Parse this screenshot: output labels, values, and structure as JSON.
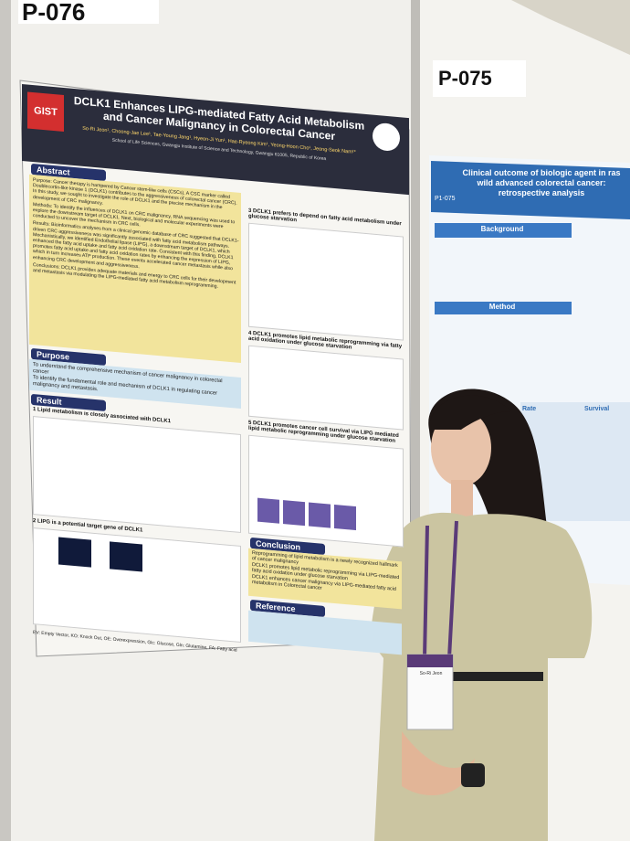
{
  "left_poster": {
    "number": "P-076",
    "logo": "GIST",
    "title": "DCLK1 Enhances LIPG-mediated Fatty Acid Metabolism and Cancer Malignancy in Colorectal Cancer",
    "authors": "So-Ri Jeon¹, Choong-Jae Lee¹, Tae-Young Jang¹, Hyeon-Ji Yun¹, Hae-Ryeong Kim¹, Yeong-Hoon Cho¹, Jeong-Seok Nam¹*",
    "affiliation": "School of Life Sciences, Gwangju Institute of Science and Technology, Gwangju 61005, Republic of Korea",
    "abstract": {
      "heading": "Abstract",
      "paragraphs": [
        "Purpose: Cancer therapy is hampered by Cancer stem-like cells (CSCs). A CSC marker called Doublecortin-like kinase 1 (DCLK1) contributes to the aggressiveness of colorectal cancer (CRC). In this study, we sought to investigate the role of DCLK1 and the precise mechanism in the development of CRC malignancy.",
        "Methods: To identify the influences of DCLK1 on CRC malignancy, RNA sequencing was used to explore the downstream target of DCLK1. Next, biological and molecular experiments were conducted to uncover the mechanism in CRC cells.",
        "Results: Bioinformatics analyses from a clinical genomic database of CRC suggested that DCLK1-driven CRC aggressiveness was significantly associated with fatty acid metabolism pathways. Mechanistically, we identified Endothelial lipase (LIPG), a downstream target of DCLK1, which enhanced the fatty acid uptake and fatty acid oxidation rate. Consistent with this finding, DCLK1 promotes fatty acid uptake and fatty acid oxidation rates by enhancing the expression of LIPG, which in turn increases ATP production. These events accelerated cancer metastasis while also enhancing CRC development and aggressiveness.",
        "Conclusions: DCLK1 provides adequate materials and energy to CRC cells for their development and metastasis via modulating the LIPG-mediated fatty acid metabolism reprogramming."
      ]
    },
    "purpose": {
      "heading": "Purpose",
      "items": [
        "To understand the comprehensive mechanism of cancer malignancy in colorectal cancer",
        "To identify the fundamental role and mechanism of DCLK1 in regulating cancer malignancy and metastasis."
      ]
    },
    "result": {
      "heading": "Result",
      "panels": [
        "1  Lipid metabolism is closely associated with DCLK1",
        "2  LIPG is a potential target gene of DCLK1",
        "3  DCLK1 prefers to depend on fatty acid metabolism under glucose starvation",
        "4  DCLK1 promotes lipid metabolic reprogramming via fatty acid oxidation under glucose starvation",
        "5  DCLK1 promotes cancer cell survival via LIPG mediated lipid metabolic reprogramming under glucose starvation"
      ]
    },
    "conclusion": {
      "heading": "Conclusion",
      "items": [
        "Reprogramming of lipid metabolism is a newly recognized hallmark of cancer malignancy",
        "DCLK1 promotes lipid metabolic reprogramming via LIPG-mediated fatty acid oxidation under glucose starvation",
        "DCLK1 enhances cancer malignancy via LIPG-mediated fatty acid metabolism in Colorectal cancer"
      ]
    },
    "reference": {
      "heading": "Reference"
    },
    "footnote": "EV: Empty Vector, KO: Knock Out, OE: Overexpression, Glc: Glucose, Gln: Glutamine, FA: Fatty acid"
  },
  "right_poster": {
    "number": "P-075",
    "id": "P1-075",
    "title": "Clinical outcome of biologic agent in ras wild advanced colorectal cancer: retrospective analysis",
    "sections": [
      "Background",
      "Method",
      "Rate",
      "Survival"
    ]
  },
  "badge": {
    "name": "So-Ri Jeon"
  }
}
